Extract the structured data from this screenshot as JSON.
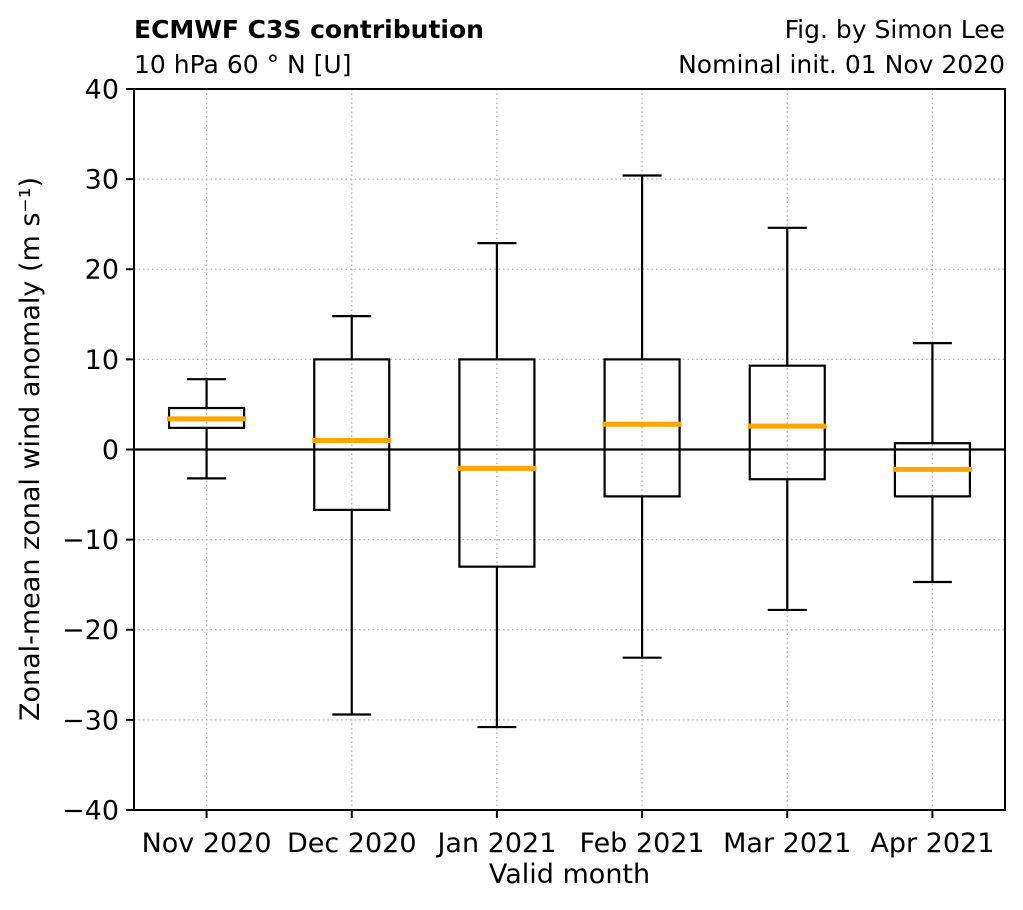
{
  "figure": {
    "title_left": "ECMWF C3S contribution",
    "subtitle_left": "10 hPa 60 ° N [U]",
    "title_right": "Fig. by Simon Lee",
    "subtitle_right": "Nominal init. 01 Nov 2020"
  },
  "chart_data": {
    "type": "boxplot",
    "title": "ECMWF C3S contribution",
    "subtitle": "10 hPa 60 ° N [U]",
    "attribution": "Fig. by Simon Lee",
    "init_label": "Nominal init. 01 Nov 2020",
    "xlabel": "Valid month",
    "ylabel": "Zonal-mean zonal wind anomaly (m s⁻¹)",
    "ylim": [
      -40,
      40
    ],
    "yticks": [
      40,
      30,
      20,
      10,
      0,
      -10,
      -20,
      -30,
      -40
    ],
    "grid": "dotted",
    "zero_line": true,
    "legend": "none",
    "categories": [
      "Nov 2020",
      "Dec 2020",
      "Jan 2021",
      "Feb 2021",
      "Mar 2021",
      "Apr 2021"
    ],
    "boxes": [
      {
        "label": "Nov 2020",
        "whisker_low": -3.2,
        "q1": 2.4,
        "median": 3.4,
        "q3": 4.6,
        "whisker_high": 7.8
      },
      {
        "label": "Dec 2020",
        "whisker_low": -29.4,
        "q1": -6.7,
        "median": 1.0,
        "q3": 10.0,
        "whisker_high": 14.8
      },
      {
        "label": "Jan 2021",
        "whisker_low": -30.8,
        "q1": -13.0,
        "median": -2.1,
        "q3": 10.0,
        "whisker_high": 22.9
      },
      {
        "label": "Feb 2021",
        "whisker_low": -23.1,
        "q1": -5.2,
        "median": 2.8,
        "q3": 10.0,
        "whisker_high": 30.4
      },
      {
        "label": "Mar 2021",
        "whisker_low": -17.8,
        "q1": -3.3,
        "median": 2.6,
        "q3": 9.3,
        "whisker_high": 24.6
      },
      {
        "label": "Apr 2021",
        "whisker_low": -14.7,
        "q1": -5.2,
        "median": -2.2,
        "q3": 0.7,
        "whisker_high": 11.8
      }
    ],
    "colors": {
      "box": "#000000",
      "median": "#FFA500",
      "grid": "#b0b0b0",
      "zero_line": "#000000",
      "background": "#ffffff"
    }
  }
}
